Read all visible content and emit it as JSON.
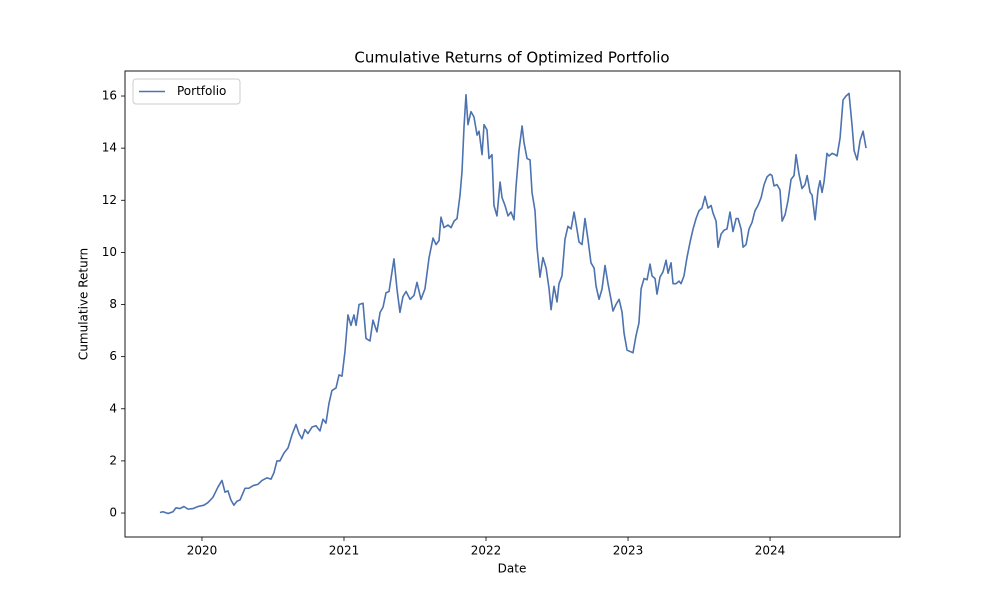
{
  "chart_data": {
    "type": "line",
    "title": "Cumulative Returns of Optimized Portfolio",
    "xlabel": "Date",
    "ylabel": "Cumulative Return",
    "x": [
      2019.704,
      2019.725,
      2019.761,
      2019.796,
      2019.817,
      2019.845,
      2019.873,
      2019.901,
      2019.937,
      2019.972,
      2020.014,
      2020.042,
      2020.077,
      2020.113,
      2020.141,
      2020.162,
      2020.183,
      2020.204,
      2020.225,
      2020.246,
      2020.268,
      2020.303,
      2020.331,
      2020.359,
      2020.394,
      2020.423,
      2020.458,
      2020.486,
      2020.507,
      2020.528,
      2020.549,
      2020.577,
      2020.606,
      2020.634,
      2020.662,
      2020.683,
      2020.704,
      2020.725,
      2020.746,
      2020.775,
      2020.803,
      2020.831,
      2020.852,
      2020.873,
      2020.894,
      2020.915,
      2020.944,
      2020.965,
      2020.986,
      2021.007,
      2021.028,
      2021.049,
      2021.07,
      2021.085,
      2021.106,
      2021.134,
      2021.155,
      2021.183,
      2021.204,
      2021.232,
      2021.254,
      2021.275,
      2021.296,
      2021.317,
      2021.352,
      2021.373,
      2021.394,
      2021.415,
      2021.437,
      2021.465,
      2021.493,
      2021.514,
      2021.542,
      2021.57,
      2021.599,
      2021.627,
      2021.648,
      2021.669,
      2021.683,
      2021.704,
      2021.732,
      2021.754,
      2021.775,
      2021.796,
      2021.817,
      2021.831,
      2021.845,
      2021.859,
      2021.873,
      2021.894,
      2021.915,
      2021.937,
      2021.951,
      2021.972,
      2021.986,
      2022.007,
      2022.021,
      2022.042,
      2022.056,
      2022.077,
      2022.099,
      2022.113,
      2022.134,
      2022.155,
      2022.176,
      2022.197,
      2022.211,
      2022.232,
      2022.254,
      2022.268,
      2022.289,
      2022.31,
      2022.324,
      2022.345,
      2022.359,
      2022.38,
      2022.401,
      2022.423,
      2022.444,
      2022.458,
      2022.479,
      2022.5,
      2022.514,
      2022.535,
      2022.556,
      2022.577,
      2022.599,
      2022.62,
      2022.634,
      2022.655,
      2022.676,
      2022.697,
      2022.718,
      2022.739,
      2022.761,
      2022.775,
      2022.796,
      2022.817,
      2022.838,
      2022.859,
      2022.88,
      2022.894,
      2022.915,
      2022.937,
      2022.958,
      2022.972,
      2022.993,
      2023.014,
      2023.035,
      2023.056,
      2023.077,
      2023.092,
      2023.113,
      2023.134,
      2023.155,
      2023.169,
      2023.19,
      2023.204,
      2023.225,
      2023.246,
      2023.268,
      2023.282,
      2023.303,
      2023.317,
      2023.338,
      2023.359,
      2023.373,
      2023.394,
      2023.415,
      2023.437,
      2023.458,
      2023.479,
      2023.5,
      2023.521,
      2023.542,
      2023.563,
      2023.585,
      2023.599,
      2023.62,
      2023.634,
      2023.655,
      2023.676,
      2023.697,
      2023.718,
      2023.739,
      2023.761,
      2023.775,
      2023.796,
      2023.81,
      2023.831,
      2023.852,
      2023.873,
      2023.894,
      2023.915,
      2023.937,
      2023.958,
      2023.979,
      2024.0,
      2024.014,
      2024.028,
      2024.049,
      2024.07,
      2024.085,
      2024.106,
      2024.127,
      2024.148,
      2024.169,
      2024.183,
      2024.204,
      2024.225,
      2024.246,
      2024.261,
      2024.282,
      2024.296,
      2024.317,
      2024.338,
      2024.352,
      2024.366,
      2024.38,
      2024.401,
      2024.415,
      2024.437,
      2024.458,
      2024.472,
      2024.493,
      2024.514,
      2024.535,
      2024.556,
      2024.577,
      2024.592,
      2024.613,
      2024.634,
      2024.655,
      2024.676
    ],
    "series": [
      {
        "name": "Portfolio",
        "color": "#4c72b0",
        "values": [
          0.02,
          0.05,
          -0.02,
          0.05,
          0.2,
          0.17,
          0.25,
          0.15,
          0.17,
          0.25,
          0.3,
          0.4,
          0.6,
          1.0,
          1.25,
          0.8,
          0.85,
          0.5,
          0.3,
          0.45,
          0.5,
          0.95,
          0.95,
          1.05,
          1.1,
          1.25,
          1.35,
          1.3,
          1.55,
          2.0,
          2.0,
          2.3,
          2.5,
          3.0,
          3.4,
          3.05,
          2.85,
          3.2,
          3.05,
          3.3,
          3.35,
          3.15,
          3.6,
          3.45,
          4.2,
          4.7,
          4.8,
          5.3,
          5.25,
          6.2,
          7.6,
          7.2,
          7.6,
          7.2,
          8.0,
          8.05,
          6.7,
          6.6,
          7.4,
          6.95,
          7.7,
          7.9,
          8.45,
          8.5,
          9.75,
          8.6,
          7.7,
          8.3,
          8.5,
          8.2,
          8.35,
          8.85,
          8.2,
          8.6,
          9.8,
          10.55,
          10.3,
          10.45,
          11.35,
          10.95,
          11.05,
          10.95,
          11.2,
          11.3,
          12.2,
          13.1,
          14.8,
          16.05,
          14.9,
          15.4,
          15.2,
          14.5,
          14.65,
          13.75,
          14.9,
          14.7,
          13.6,
          13.75,
          11.8,
          11.4,
          12.7,
          12.1,
          11.8,
          11.4,
          11.55,
          11.25,
          12.5,
          13.9,
          14.85,
          14.2,
          13.6,
          13.55,
          12.3,
          11.6,
          10.2,
          9.05,
          9.8,
          9.4,
          8.6,
          7.8,
          8.7,
          8.1,
          8.8,
          9.1,
          10.5,
          11.0,
          10.9,
          11.55,
          11.1,
          10.4,
          10.3,
          11.3,
          10.5,
          9.6,
          9.4,
          8.7,
          8.2,
          8.6,
          9.5,
          8.8,
          8.2,
          7.75,
          8.0,
          8.2,
          7.7,
          6.9,
          6.25,
          6.2,
          6.15,
          6.8,
          7.3,
          8.6,
          9.0,
          8.95,
          9.55,
          9.1,
          9.0,
          8.4,
          9.05,
          9.25,
          9.7,
          9.2,
          9.6,
          8.8,
          8.8,
          8.9,
          8.8,
          9.1,
          9.8,
          10.4,
          10.9,
          11.3,
          11.6,
          11.7,
          12.15,
          11.7,
          11.8,
          11.5,
          11.2,
          10.2,
          10.7,
          10.85,
          10.9,
          11.55,
          10.8,
          11.3,
          11.3,
          10.9,
          10.2,
          10.3,
          10.9,
          11.15,
          11.6,
          11.8,
          12.1,
          12.6,
          12.9,
          13.0,
          12.95,
          12.55,
          12.6,
          12.4,
          11.2,
          11.45,
          12.0,
          12.8,
          12.95,
          13.75,
          13.0,
          12.45,
          12.6,
          12.95,
          12.3,
          12.2,
          11.25,
          12.4,
          12.75,
          12.3,
          12.7,
          13.8,
          13.7,
          13.8,
          13.75,
          13.7,
          14.4,
          15.85,
          16.0,
          16.1,
          14.9,
          13.9,
          13.55,
          14.3,
          14.65,
          14.0
        ]
      }
    ],
    "xlim": [
      2019.458,
      2024.915
    ],
    "xticks": [
      2020,
      2021,
      2022,
      2023,
      2024
    ],
    "ylim": [
      -0.92,
      16.96
    ],
    "yticks": [
      0,
      2,
      4,
      6,
      8,
      10,
      12,
      14,
      16
    ],
    "grid": false,
    "legend": "upper left"
  }
}
